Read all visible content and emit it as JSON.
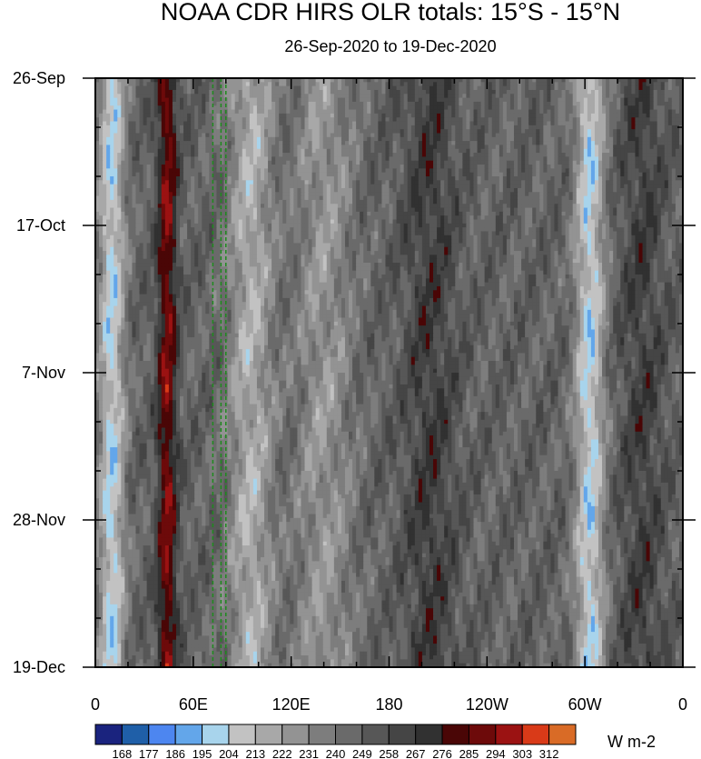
{
  "chart_data": {
    "type": "heatmap",
    "title": "NOAA CDR HIRS OLR totals: 15°S - 15°N",
    "subtitle": "26-Sep-2020 to 19-Dec-2020",
    "x_ticks": [
      "0",
      "60E",
      "120E",
      "180",
      "120W",
      "60W",
      "0"
    ],
    "x_tick_values": [
      0,
      60,
      120,
      180,
      240,
      300,
      360
    ],
    "xlim": [
      0,
      360
    ],
    "y_ticks": [
      "26-Sep",
      "17-Oct",
      "7-Nov",
      "28-Nov",
      "19-Dec"
    ],
    "ylim": [
      "26-Sep-2020",
      "19-Dec-2020"
    ],
    "units": "W m-2",
    "colorbar": {
      "levels": [
        168,
        177,
        186,
        195,
        204,
        213,
        222,
        231,
        240,
        249,
        258,
        267,
        276,
        285,
        294,
        303,
        312
      ],
      "colors": [
        "#1a237e",
        "#1f5fa8",
        "#4d86f0",
        "#63a6ea",
        "#a8d4ec",
        "#c2c2c2",
        "#a8a8a8",
        "#939393",
        "#7d7d7d",
        "#6a6a6a",
        "#575757",
        "#454545",
        "#313131",
        "#4a0606",
        "#6d0a0a",
        "#9b1212",
        "#d93a18",
        "#d96b26"
      ]
    },
    "reference_lines_lon": [
      72,
      77,
      80
    ],
    "field_features": [
      {
        "lon": 10,
        "width": 8,
        "amp": 45
      },
      {
        "lon": 44,
        "width": 6,
        "amp": -42
      },
      {
        "lon": 95,
        "width": 14,
        "amp": 32
      },
      {
        "lon": 140,
        "width": 18,
        "amp": 22
      },
      {
        "lon": 205,
        "width": 16,
        "amp": -18
      },
      {
        "lon": 303,
        "width": 9,
        "amp": 45
      },
      {
        "lon": 335,
        "width": 14,
        "amp": -16
      }
    ]
  }
}
